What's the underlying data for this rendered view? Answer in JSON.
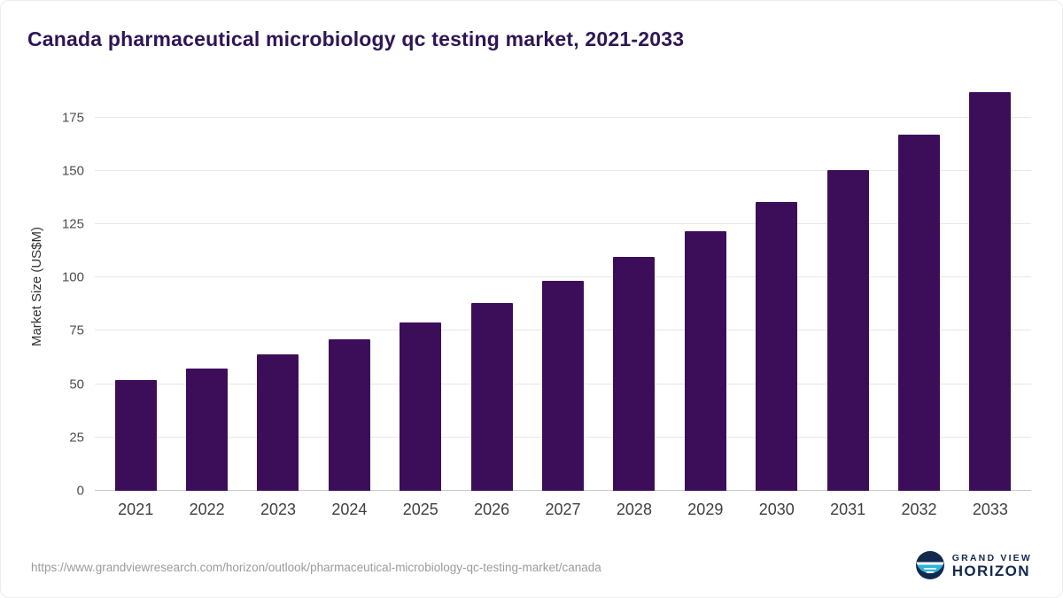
{
  "title": "Canada pharmaceutical microbiology qc testing market, 2021-2033",
  "chart_data": {
    "type": "bar",
    "title": "Canada pharmaceutical microbiology qc testing market, 2021-2033",
    "categories": [
      "2021",
      "2022",
      "2023",
      "2024",
      "2025",
      "2026",
      "2027",
      "2028",
      "2029",
      "2030",
      "2031",
      "2032",
      "2033"
    ],
    "values": [
      52,
      57.5,
      64,
      71,
      79,
      88,
      98.5,
      109.5,
      121.5,
      135.5,
      150.5,
      167,
      187
    ],
    "xlabel": "",
    "ylabel": "Market Size (US$M)",
    "ylim": [
      0,
      191
    ],
    "yticks": [
      0,
      25,
      50,
      75,
      100,
      125,
      150,
      175
    ],
    "grid": true,
    "legend": "none",
    "bar_color": "#3c0e59"
  },
  "footer": {
    "source_url": "https://www.grandviewresearch.com/horizon/outlook/pharmaceutical-microbiology-qc-testing-market/canada",
    "logo_line1": "GRAND VIEW",
    "logo_line2": "HORIZON"
  },
  "colors": {
    "bar": "#3c0e59",
    "title_text": "#2d1654",
    "gridline": "#e8e8e8",
    "axis_line": "#c9c9c9",
    "tick_text": "#4d4d4d",
    "url_text": "#9b9b9b",
    "logo_navy": "#12294e",
    "logo_teal": "#2fb4d8"
  }
}
